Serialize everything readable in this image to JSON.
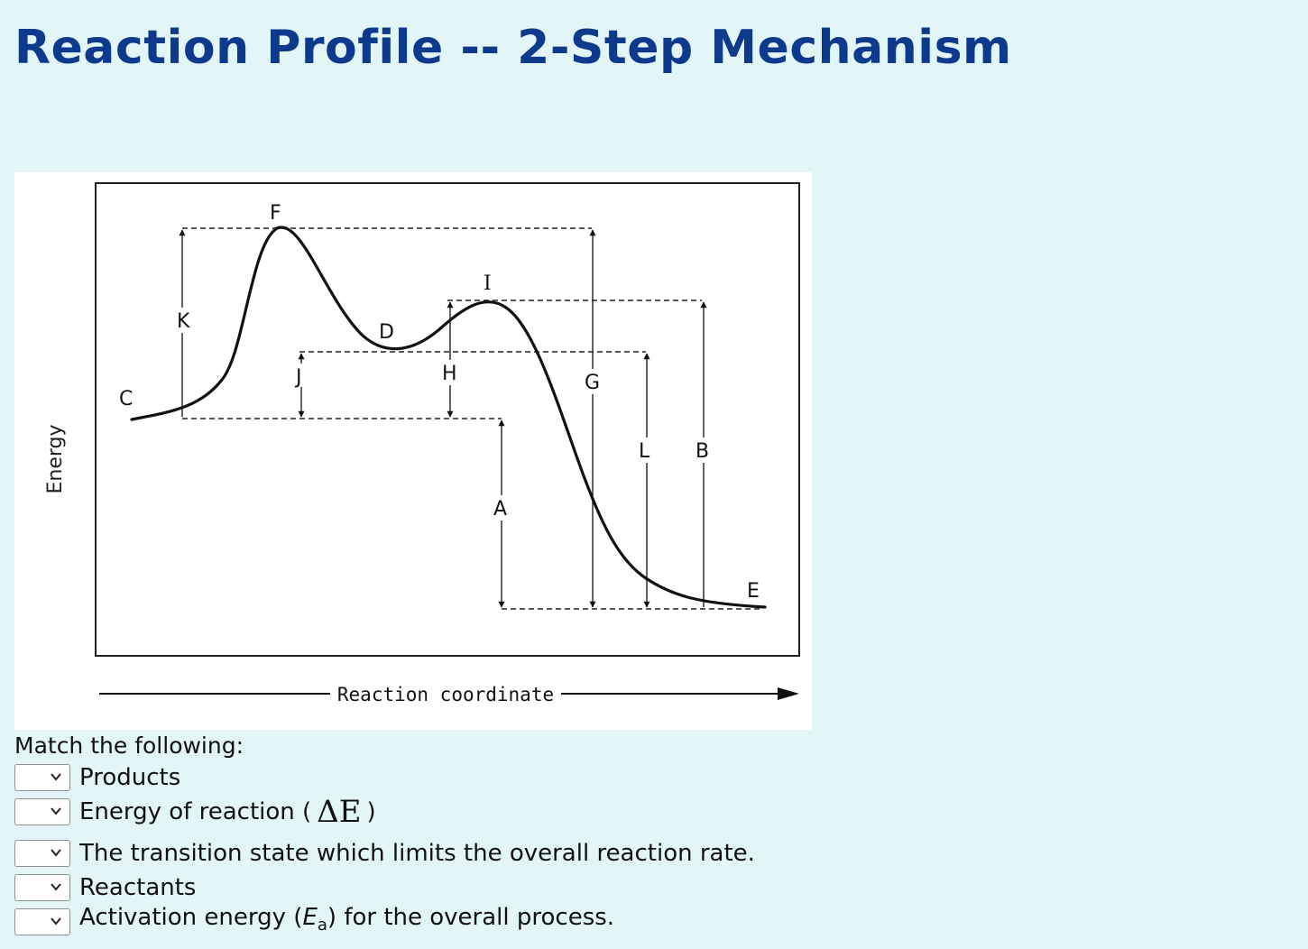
{
  "page": {
    "title": "Reaction Profile -- 2-Step Mechanism"
  },
  "diagram": {
    "y_axis_label": "Energy",
    "x_axis_label": "Reaction coordinate",
    "labels": {
      "A": "A",
      "B": "B",
      "C": "C",
      "D": "D",
      "E": "E",
      "F": "F",
      "G": "G",
      "H": "H",
      "I": "I",
      "J": "J",
      "K": "K",
      "L": "L"
    }
  },
  "questions": {
    "intro": "Match the following:",
    "items": [
      {
        "text": "Products",
        "selected": ""
      },
      {
        "text_before": "Energy of reaction (",
        "symbol": "ΔE",
        "text_after": ")",
        "selected": ""
      },
      {
        "text": "The transition state which limits the overall reaction rate.",
        "selected": ""
      },
      {
        "text": "Reactants",
        "selected": ""
      },
      {
        "text_before": "Activation energy (",
        "symbol": "E",
        "subscript": "a",
        "text_after": ") for the overall process.",
        "selected": ""
      }
    ]
  },
  "icons": {
    "dropdown": "chevron-down-icon"
  }
}
